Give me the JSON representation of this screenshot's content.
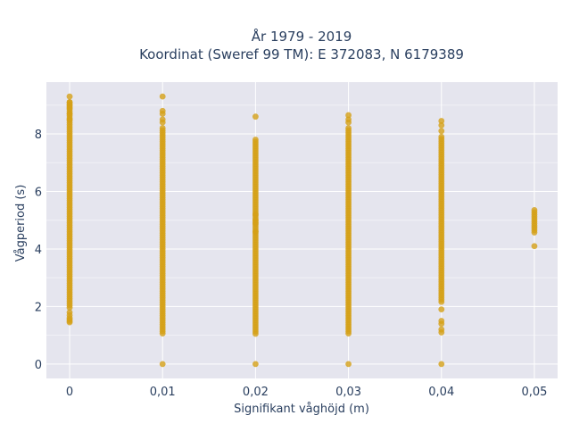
{
  "chart_data": {
    "type": "scatter",
    "title_line1": "År 1979 - 2019",
    "title_line2": "Koordinat (Sweref 99 TM): E 372083, N 6179389",
    "xlabel": "Signifikant våghöjd (m)",
    "ylabel": "Vågperiod (s)",
    "xlim": [
      -0.0025,
      0.0525
    ],
    "ylim": [
      -0.5,
      9.8
    ],
    "x_ticks": [
      0,
      0.01,
      0.02,
      0.03,
      0.04,
      0.05
    ],
    "x_tick_labels": [
      "0",
      "0,01",
      "0,02",
      "0,03",
      "0,04",
      "0,05"
    ],
    "y_ticks": [
      0,
      2,
      4,
      6,
      8
    ],
    "y_tick_labels": [
      "0",
      "2",
      "4",
      "6",
      "8"
    ],
    "marker_color": "#d4a017",
    "plot_bg": "#e5e5ee",
    "grid": true,
    "series": [
      {
        "x_category": 0,
        "x": 0,
        "y_min": 1.9,
        "y_max": 9.1,
        "outliers": [
          9.3,
          9.1,
          9.0,
          8.9,
          8.7,
          8.5,
          1.8,
          1.7,
          1.6,
          1.55,
          1.5,
          1.45
        ]
      },
      {
        "x_category": 0.01,
        "x": 0.01,
        "y_min": 1.05,
        "y_max": 8.2,
        "outliers": [
          9.3,
          8.8,
          8.7,
          8.5,
          8.4,
          0.0
        ]
      },
      {
        "x_category": 0.02,
        "x": 0.02,
        "y_min": 1.05,
        "y_max": 7.8,
        "outliers": [
          8.6,
          5.2,
          5.0,
          4.9,
          4.6,
          0.0
        ]
      },
      {
        "x_category": 0.03,
        "x": 0.03,
        "y_min": 1.05,
        "y_max": 8.2,
        "outliers": [
          8.65,
          8.5,
          8.4,
          0.0
        ]
      },
      {
        "x_category": 0.04,
        "x": 0.04,
        "y_min": 2.1,
        "y_max": 7.9,
        "outliers": [
          8.45,
          8.3,
          8.1,
          1.9,
          1.5,
          1.4,
          1.2,
          1.1,
          0.0
        ]
      },
      {
        "x_category": 0.05,
        "x": 0.05,
        "y_min": 4.5,
        "y_max": 5.35,
        "outliers": [
          4.1
        ]
      }
    ]
  }
}
